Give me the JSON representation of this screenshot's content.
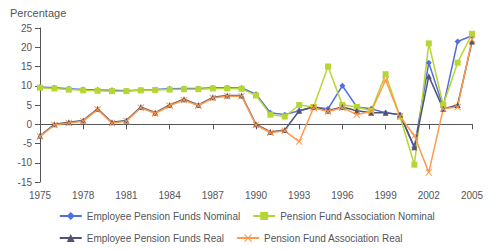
{
  "chart_data": {
    "type": "line",
    "title": "",
    "ylabel": "Percentage",
    "x": [
      1975,
      1976,
      1977,
      1978,
      1979,
      1980,
      1981,
      1982,
      1983,
      1984,
      1985,
      1986,
      1987,
      1988,
      1989,
      1990,
      1991,
      1992,
      1993,
      1994,
      1995,
      1996,
      1997,
      1998,
      1999,
      2000,
      2001,
      2002,
      2003,
      2004,
      2005
    ],
    "xlim": [
      1975,
      2005
    ],
    "xticks": [
      1975,
      1978,
      1981,
      1984,
      1987,
      1990,
      1993,
      1996,
      1999,
      2002,
      2005
    ],
    "ylim": [
      -15,
      25
    ],
    "yticks": [
      -15,
      -10,
      -5,
      0,
      5,
      10,
      15,
      20,
      25
    ],
    "grid": false,
    "legend": "bottom",
    "series": [
      {
        "name": "Employee Pension Funds Nominal",
        "marker": "diamond",
        "values": [
          9.7,
          9.5,
          9.2,
          9.0,
          8.9,
          8.8,
          8.7,
          8.9,
          9.0,
          9.2,
          9.3,
          9.3,
          9.5,
          9.5,
          9.4,
          7.8,
          3.0,
          2.5,
          3.5,
          4.5,
          4.0,
          10.0,
          4.5,
          4.0,
          3.0,
          2.5,
          -6.0,
          16.0,
          4.5,
          21.5,
          23.0
        ]
      },
      {
        "name": "Pension Fund Association Nominal",
        "marker": "square",
        "values": [
          9.5,
          9.3,
          9.0,
          8.8,
          8.7,
          8.6,
          8.6,
          8.8,
          8.9,
          9.0,
          9.1,
          9.1,
          9.3,
          9.3,
          9.2,
          7.5,
          2.5,
          2.0,
          5.0,
          4.5,
          15.0,
          5.0,
          4.5,
          3.5,
          13.0,
          2.0,
          -10.5,
          21.0,
          5.0,
          16.0,
          23.5
        ]
      },
      {
        "name": "Employee Pension Funds Real",
        "marker": "triangle",
        "values": [
          -3.0,
          0.0,
          0.5,
          1.0,
          4.0,
          0.5,
          1.0,
          4.5,
          3.0,
          5.0,
          6.5,
          5.0,
          7.0,
          7.5,
          7.5,
          0.0,
          -2.0,
          -1.5,
          3.5,
          4.5,
          3.5,
          4.5,
          3.5,
          3.0,
          3.0,
          2.5,
          -6.0,
          12.5,
          4.0,
          5.0,
          21.5
        ]
      },
      {
        "name": "Pension Fund Association Real",
        "marker": "x",
        "values": [
          -3.2,
          -0.2,
          0.3,
          0.8,
          3.8,
          0.3,
          0.8,
          4.3,
          2.8,
          4.8,
          6.3,
          4.8,
          6.8,
          7.3,
          7.3,
          -0.2,
          -2.2,
          -1.7,
          -4.5,
          4.3,
          3.3,
          4.3,
          2.5,
          3.3,
          11.5,
          2.0,
          -3.0,
          -12.5,
          4.0,
          4.5,
          22.0
        ]
      }
    ]
  }
}
